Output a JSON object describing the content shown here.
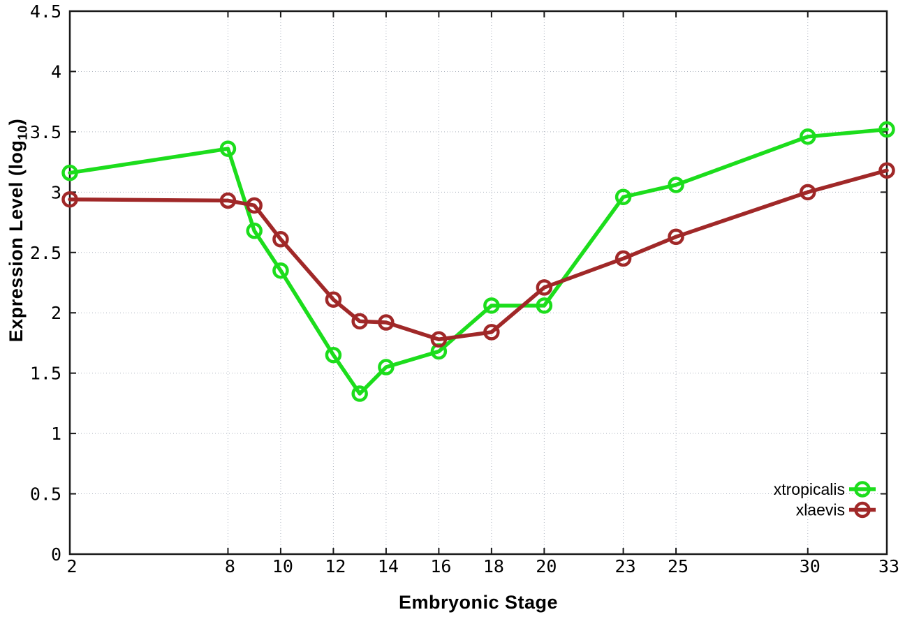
{
  "chart_data": {
    "type": "line",
    "title": "",
    "xlabel": "Embryonic Stage",
    "ylabel": {
      "prefix": "Expression Level (log",
      "sub": "10",
      "suffix": ")"
    },
    "xlim": [
      2,
      33
    ],
    "ylim": [
      0,
      4.5
    ],
    "grid": true,
    "legend_position": "bottom-right",
    "axis_color": "#1a1a1a",
    "grid_color": "#adb3bf",
    "x_ticks": [
      {
        "value": 2,
        "label": "2"
      },
      {
        "value": 8,
        "label": "8"
      },
      {
        "value": 10,
        "label": "10"
      },
      {
        "value": 12,
        "label": "12"
      },
      {
        "value": 14,
        "label": "14"
      },
      {
        "value": 16,
        "label": "16"
      },
      {
        "value": 18,
        "label": "18"
      },
      {
        "value": 20,
        "label": "20"
      },
      {
        "value": 23,
        "label": "23"
      },
      {
        "value": 25,
        "label": "25"
      },
      {
        "value": 30,
        "label": "30"
      },
      {
        "value": 33,
        "label": "33"
      }
    ],
    "y_ticks": [
      {
        "value": 0,
        "label": "0"
      },
      {
        "value": 0.5,
        "label": "0.5"
      },
      {
        "value": 1,
        "label": "1"
      },
      {
        "value": 1.5,
        "label": "1.5"
      },
      {
        "value": 2,
        "label": "2"
      },
      {
        "value": 2.5,
        "label": "2.5"
      },
      {
        "value": 3,
        "label": "3"
      },
      {
        "value": 3.5,
        "label": "3.5"
      },
      {
        "value": 4,
        "label": "4"
      },
      {
        "value": 4.5,
        "label": "4.5"
      }
    ],
    "x": [
      2,
      8,
      9,
      10,
      12,
      13,
      14,
      16,
      18,
      20,
      23,
      25,
      30,
      33
    ],
    "series": [
      {
        "name": "xtropicalis",
        "color": "#1cdd1c",
        "marker": "open-circle",
        "values": [
          3.16,
          3.36,
          2.68,
          2.35,
          1.65,
          1.33,
          1.55,
          1.68,
          2.06,
          2.06,
          2.96,
          3.06,
          3.46,
          3.52
        ]
      },
      {
        "name": "xlaevis",
        "color": "#a02828",
        "marker": "open-circle",
        "values": [
          2.94,
          2.93,
          2.89,
          2.61,
          2.11,
          1.93,
          1.92,
          1.78,
          1.84,
          2.21,
          2.45,
          2.63,
          3.0,
          3.18
        ]
      }
    ]
  }
}
